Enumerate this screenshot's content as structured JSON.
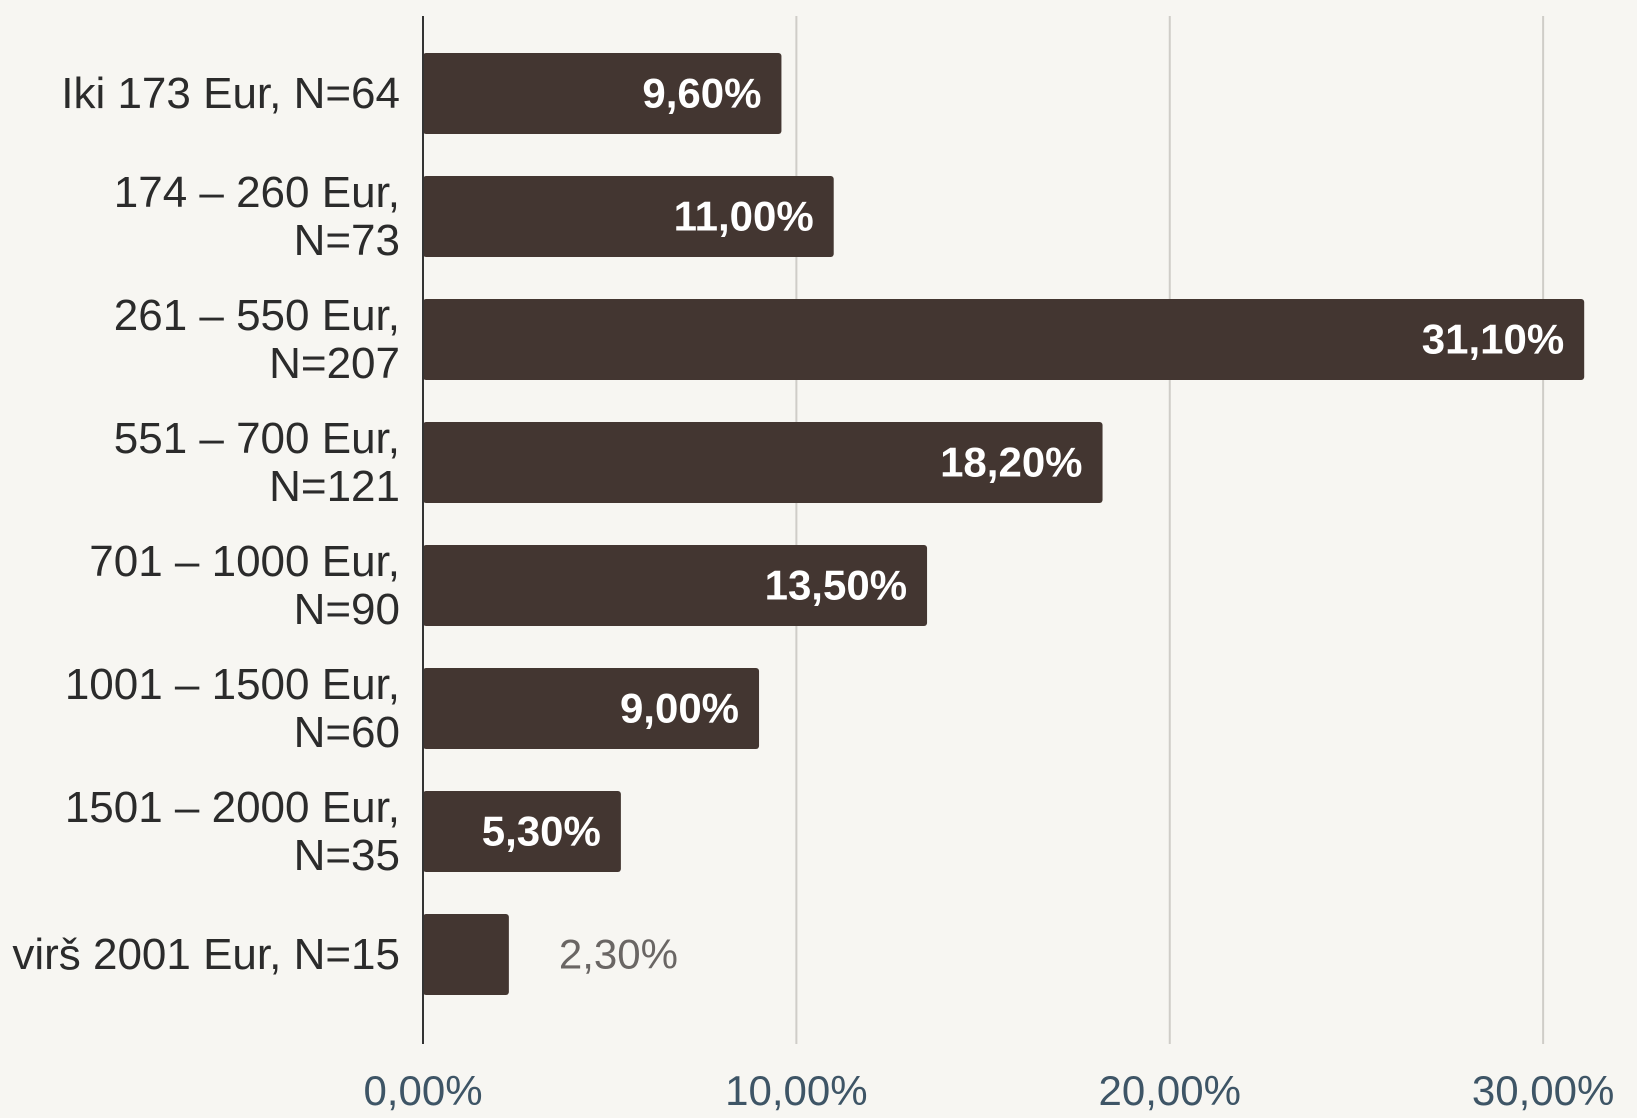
{
  "chart_data": {
    "type": "barh",
    "categories": [
      "Iki 173 Eur, N=64",
      "174 – 260 Eur, N=73",
      "261 – 550 Eur, N=207",
      "551 – 700 Eur, N=121",
      "701 – 1000 Eur, N=90",
      "1001 – 1500 Eur, N=60",
      "1501 – 2000 Eur, N=35",
      "virš 2001 Eur, N=15"
    ],
    "values": [
      9.6,
      11.0,
      31.1,
      18.2,
      13.5,
      9.0,
      5.3,
      2.3
    ],
    "value_labels": [
      "9,60%",
      "11,00%",
      "31,10%",
      "18,20%",
      "13,50%",
      "9,00%",
      "5,30%",
      "2,30%"
    ],
    "color": "#433631",
    "xlim": [
      0,
      32.3
    ],
    "xticks": [
      {
        "value": 0,
        "label": "0,00%"
      },
      {
        "value": 10,
        "label": "10,00%"
      },
      {
        "value": 20,
        "label": "20,00%"
      },
      {
        "value": 30,
        "label": "30,00%"
      }
    ],
    "grid": true
  }
}
